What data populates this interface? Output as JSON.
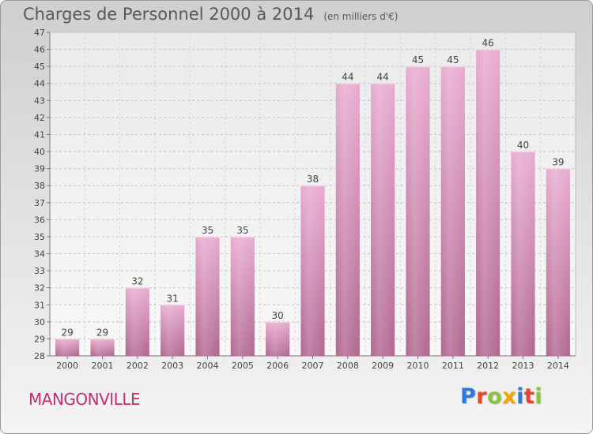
{
  "header": {
    "title": "Charges de Personnel 2000 à 2014",
    "unit": "(en milliers d'€)"
  },
  "footer": {
    "commune": "MANGONVILLE",
    "brand": "Proxiti",
    "brand_colors": [
      "#2f7bd8",
      "#e8462c",
      "#8ac43f",
      "#f0a500",
      "#2f7bd8",
      "#e8462c",
      "#8ac43f"
    ]
  },
  "chart_data": {
    "type": "bar",
    "title": "Charges de Personnel 2000 à 2014",
    "unit": "(en milliers d'€)",
    "categories": [
      "2000",
      "2001",
      "2002",
      "2003",
      "2004",
      "2005",
      "2006",
      "2007",
      "2008",
      "2009",
      "2010",
      "2011",
      "2012",
      "2013",
      "2014"
    ],
    "values": [
      29,
      29,
      32,
      31,
      35,
      35,
      30,
      38,
      44,
      44,
      45,
      45,
      46,
      40,
      39
    ],
    "ylim": [
      28,
      47
    ],
    "yticks": [
      28,
      29,
      30,
      31,
      32,
      33,
      34,
      35,
      36,
      37,
      38,
      39,
      40,
      41,
      42,
      43,
      44,
      45,
      46,
      47
    ],
    "grid": true,
    "bar_color": "#d98ab8",
    "grid_style": "dashed",
    "legend": "none"
  }
}
